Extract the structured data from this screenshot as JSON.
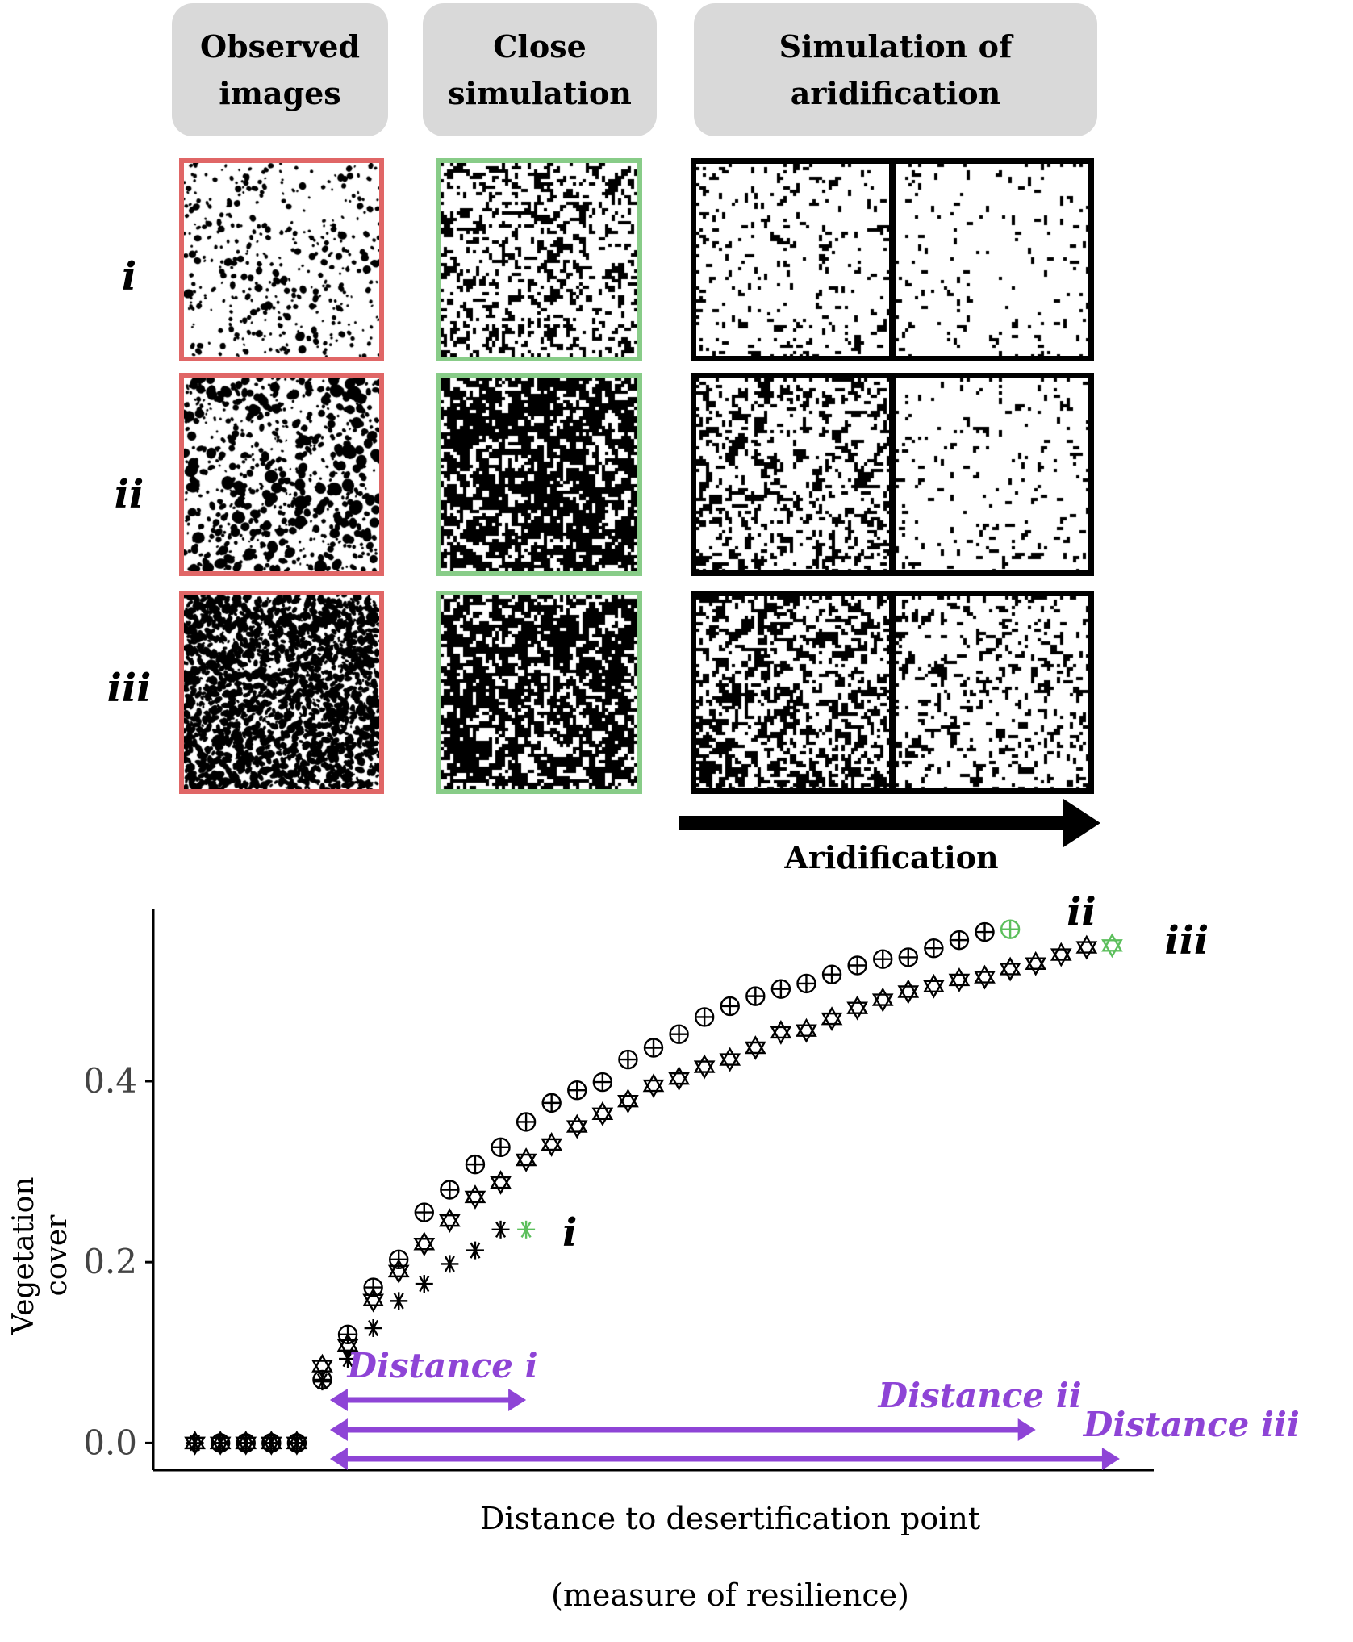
{
  "headers": [
    {
      "id": "observed",
      "label": "Observed\nimages"
    },
    {
      "id": "close",
      "label": "Close\nsimulation"
    },
    {
      "id": "aridification-sim",
      "label": "Simulation of\naridification"
    }
  ],
  "row_labels": [
    "i",
    "ii",
    "iii"
  ],
  "aridification_arrow_label": "Aridification",
  "colors": {
    "observed_frame": "#e06666",
    "close_frame": "#88cc88",
    "simulation_frame": "#000000",
    "header_bg": "#d9d9d9",
    "distance_arrows": "#8e44d6",
    "highlight_point": "#5cbf5c"
  },
  "chart_data": {
    "type": "scatter",
    "xlabel": "Distance to desertification point",
    "xlabel_sub": "(measure of resilience)",
    "ylabel": "Vegetation cover",
    "yticks": [
      0.0,
      0.2,
      0.4
    ],
    "ytick_labels": [
      "0.0",
      "0.2",
      "0.4"
    ],
    "ylim": [
      -0.03,
      0.59
    ],
    "xlim": [
      0,
      38
    ],
    "series": [
      {
        "name": "i",
        "marker": "asterisk",
        "x": [
          1,
          2,
          3,
          4,
          5,
          6,
          7,
          8,
          9,
          10,
          11,
          12,
          13,
          14
        ],
        "y": [
          0,
          0,
          0,
          0,
          0,
          0.068,
          0.093,
          0.127,
          0.157,
          0.176,
          0.198,
          0.213,
          0.236,
          0.236
        ]
      },
      {
        "name": "ii",
        "marker": "circle-plus",
        "x": [
          2,
          3,
          4,
          5,
          6,
          7,
          8,
          9,
          10,
          11,
          12,
          13,
          14,
          15,
          16,
          17,
          18,
          19,
          20,
          21,
          22,
          23,
          24,
          25,
          26,
          27,
          28,
          29,
          30,
          31,
          32,
          33
        ],
        "y": [
          0,
          0,
          0,
          0,
          0.07,
          0.12,
          0.172,
          0.203,
          0.255,
          0.28,
          0.308,
          0.327,
          0.355,
          0.376,
          0.39,
          0.399,
          0.424,
          0.437,
          0.452,
          0.471,
          0.483,
          0.494,
          0.502,
          0.508,
          0.518,
          0.528,
          0.535,
          0.537,
          0.547,
          0.556,
          0.565,
          0.568
        ]
      },
      {
        "name": "iii",
        "marker": "star-of-david",
        "x": [
          1,
          2,
          3,
          4,
          5,
          6,
          7,
          8,
          9,
          10,
          11,
          12,
          13,
          14,
          15,
          16,
          17,
          18,
          19,
          20,
          21,
          22,
          23,
          24,
          25,
          26,
          27,
          28,
          29,
          30,
          31,
          32,
          33,
          34,
          35,
          36,
          37
        ],
        "y": [
          0,
          0,
          0,
          0,
          0,
          0.085,
          0.108,
          0.158,
          0.19,
          0.22,
          0.246,
          0.272,
          0.288,
          0.313,
          0.33,
          0.35,
          0.364,
          0.378,
          0.395,
          0.403,
          0.416,
          0.424,
          0.437,
          0.454,
          0.456,
          0.469,
          0.481,
          0.49,
          0.499,
          0.505,
          0.512,
          0.515,
          0.524,
          0.53,
          0.54,
          0.548,
          0.55
        ]
      }
    ],
    "highlighted_points": [
      {
        "series": "i",
        "x": 14,
        "y": 0.236
      },
      {
        "series": "ii",
        "x": 33,
        "y": 0.568
      },
      {
        "series": "iii",
        "x": 37,
        "y": 0.55
      }
    ],
    "series_labels": [
      "i",
      "ii",
      "iii"
    ],
    "distance_arrows": [
      {
        "label": "Distance i",
        "from": 6.3,
        "to": 14
      },
      {
        "label": "Distance ii",
        "from": 6.3,
        "to": 34
      },
      {
        "label": "Distance iii",
        "from": 6.3,
        "to": 37.3
      }
    ]
  }
}
